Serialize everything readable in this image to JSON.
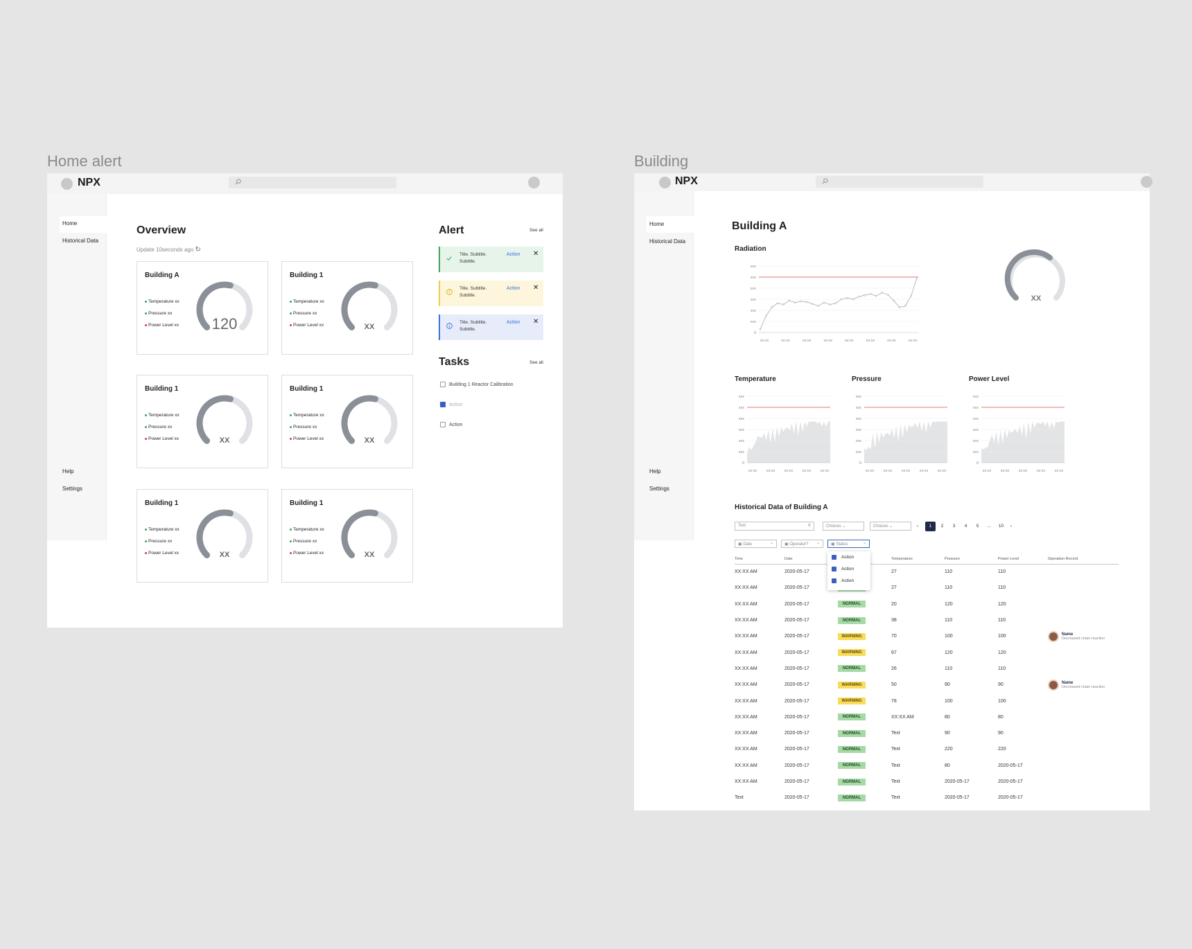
{
  "left_frame": {
    "label": "Home alert",
    "logo": "NPX",
    "sidebar": {
      "items": [
        "Home",
        "Historical Data"
      ],
      "bottom_items": [
        "Help",
        "Settings"
      ]
    },
    "overview": {
      "title": "Overview",
      "update_text": "Update 10seconds ago"
    },
    "cards": [
      {
        "title": "Building A",
        "gauge_text": "120",
        "gauge_value": 0.55
      },
      {
        "title": "Building 1",
        "gauge_text": "XX",
        "gauge_value": 0.55
      },
      {
        "title": "Building 1",
        "gauge_text": "XX",
        "gauge_value": 0.55
      },
      {
        "title": "Building 1",
        "gauge_text": "XX",
        "gauge_value": 0.55
      },
      {
        "title": "Building 1",
        "gauge_text": "XX",
        "gauge_value": 0.55
      },
      {
        "title": "Building 1",
        "gauge_text": "XX",
        "gauge_value": 0.55
      }
    ],
    "metrics": [
      "Temperature xx",
      "Pressure xx",
      "Power Level xx"
    ],
    "metric_colors": [
      "#3aa35a",
      "#3aa35a",
      "#e03a3a"
    ],
    "alert": {
      "title": "Alert",
      "see_all": "See all",
      "items": [
        {
          "text": "Title. Subtitle. Subtitle.",
          "action": "Action",
          "bg": "#e6f4ea",
          "border": "#3aa35a",
          "icon": "check-icon"
        },
        {
          "text": "Title. Subtitle. Subtitle.",
          "action": "Action",
          "bg": "#fdf6dc",
          "border": "#f0c94a",
          "icon": "warning-icon"
        },
        {
          "text": "Title. Subtitle. Subtitle.",
          "action": "Action",
          "bg": "#e6ecfa",
          "border": "#3a6de0",
          "icon": "info-icon"
        }
      ]
    },
    "tasks": {
      "title": "Tasks",
      "see_all": "See all",
      "items": [
        {
          "label": "Building 1 Reactor Calibration",
          "checked": false
        },
        {
          "label": "Action",
          "checked": true
        },
        {
          "label": "Action",
          "checked": false
        }
      ]
    }
  },
  "right_frame": {
    "label": "Building",
    "logo": "NPX",
    "sidebar": {
      "items": [
        "Home",
        "Historical Data"
      ],
      "bottom_items": [
        "Help",
        "Settings"
      ]
    },
    "title": "Building A",
    "radiation": {
      "title": "Radiation",
      "gauge_text": "XX"
    },
    "mini_charts": [
      "Temperature",
      "Pressure",
      "Power Level"
    ],
    "table": {
      "title": "Historical Data of Building A",
      "search_placeholder": "Text",
      "choices": [
        "Choices",
        "Choices"
      ],
      "pagination": [
        "1",
        "2",
        "3",
        "4",
        "5",
        "...",
        "10"
      ],
      "filters": [
        "Date",
        "Operator?",
        "Status"
      ],
      "status_options": [
        "Action",
        "Action",
        "Action"
      ],
      "columns": [
        "Time",
        "Date",
        "",
        "Temperature",
        "Pressure",
        "Power Level",
        "Operation Record"
      ],
      "rows": [
        [
          "XX:XX AM",
          "2020-05-17",
          "NORMAL",
          "27",
          "110",
          "110",
          ""
        ],
        [
          "XX:XX AM",
          "2020-05-17",
          "NORMAL",
          "27",
          "110",
          "110",
          ""
        ],
        [
          "XX:XX AM",
          "2020-05-17",
          "NORMAL",
          "20",
          "120",
          "120",
          ""
        ],
        [
          "XX:XX AM",
          "2020-05-17",
          "NORMAL",
          "38",
          "110",
          "110",
          ""
        ],
        [
          "XX:XX AM",
          "2020-05-17",
          "WARNING",
          "70",
          "100",
          "100",
          "op"
        ],
        [
          "XX:XX AM",
          "2020-05-17",
          "WARNING",
          "67",
          "120",
          "120",
          ""
        ],
        [
          "XX:XX AM",
          "2020-05-17",
          "NORMAL",
          "26",
          "110",
          "110",
          ""
        ],
        [
          "XX:XX AM",
          "2020-05-17",
          "WARNING",
          "50",
          "90",
          "90",
          "op"
        ],
        [
          "XX:XX AM",
          "2020-05-17",
          "WARNING",
          "78",
          "100",
          "100",
          ""
        ],
        [
          "XX:XX AM",
          "2020-05-17",
          "NORMAL",
          "XX:XX AM",
          "80",
          "80",
          ""
        ],
        [
          "XX:XX AM",
          "2020-05-17",
          "NORMAL",
          "Text",
          "90",
          "90",
          ""
        ],
        [
          "XX:XX AM",
          "2020-05-17",
          "NORMAL",
          "Text",
          "220",
          "220",
          ""
        ],
        [
          "XX:XX AM",
          "2020-05-17",
          "NORMAL",
          "Text",
          "80",
          "2020-05-17",
          ""
        ],
        [
          "XX:XX AM",
          "2020-05-17",
          "NORMAL",
          "Text",
          "2020-05-17",
          "2020-05-17",
          ""
        ],
        [
          "Text",
          "2020-05-17",
          "NORMAL",
          "Text",
          "2020-05-17",
          "2020-05-17",
          ""
        ]
      ],
      "operator": {
        "name": "Name",
        "note": "Decreased chain reaction"
      }
    }
  },
  "axis": {
    "y_labels": [
      "xxx",
      "xxx",
      "xxx",
      "xxx",
      "xxx",
      "xxx",
      "0"
    ],
    "x_label": "xx:xx"
  }
}
